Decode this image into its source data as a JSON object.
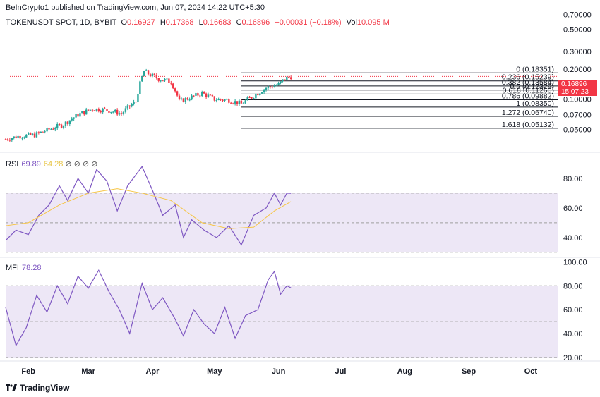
{
  "header": {
    "published": "BeInCrypto1 published on TradingView.com, Jun 07, 2024 14:22 UTC+5:30",
    "symbol": "TOKENUSDT SPOT, 1D, BYBIT",
    "open_label": "O",
    "open": "0.16927",
    "high_label": "H",
    "high": "0.17368",
    "low_label": "L",
    "low": "0.16683",
    "close_label": "C",
    "close": "0.16896",
    "change": "−0.00031 (−0.18%)",
    "vol_label": "Vol",
    "vol": "10.095 M"
  },
  "price_tag": {
    "price": "0.16896",
    "countdown": "15:07:23"
  },
  "rsi_label": {
    "name": "RSI",
    "value": "69.89",
    "ma_value": "64.28",
    "icons": "⊘ ⊘ ⊘ ⊘"
  },
  "mfi_label": {
    "name": "MFI",
    "value": "78.28"
  },
  "footer": {
    "brand": "TradingView"
  },
  "colors": {
    "up": "#26a69a",
    "down": "#f23645",
    "rsi": "#7e57c2",
    "rsi_ma": "#f6c545",
    "band": "#ede7f6"
  },
  "chart_data": [
    {
      "type": "candlestick",
      "title": "TOKENUSDT SPOT, 1D, BYBIT",
      "y_scale": "log",
      "y_ticks": [
        "0.70000",
        "0.50000",
        "0.30000",
        "0.20000",
        "0.10000",
        "0.07000",
        "0.05000"
      ],
      "y_tick_values": [
        0.7,
        0.5,
        0.3,
        0.2,
        0.1,
        0.07,
        0.05
      ],
      "ylim": [
        0.032,
        0.78
      ],
      "x_ticks": [
        "Feb",
        "Mar",
        "Apr",
        "May",
        "Jun",
        "Jul",
        "Aug",
        "Sep",
        "Oct"
      ],
      "x_tick_dates": [
        "2024-02-01",
        "2024-03-01",
        "2024-04-01",
        "2024-05-01",
        "2024-06-01",
        "2024-07-01",
        "2024-08-01",
        "2024-09-01",
        "2024-10-01"
      ],
      "x_range": [
        "2024-01-21",
        "2024-10-14"
      ],
      "close_series": [
        [
          "2024-01-21",
          0.04
        ],
        [
          "2024-01-28",
          0.043
        ],
        [
          "2024-02-04",
          0.044
        ],
        [
          "2024-02-11",
          0.05
        ],
        [
          "2024-02-18",
          0.056
        ],
        [
          "2024-02-25",
          0.07
        ],
        [
          "2024-03-03",
          0.08
        ],
        [
          "2024-03-10",
          0.078
        ],
        [
          "2024-03-17",
          0.072
        ],
        [
          "2024-03-24",
          0.095
        ],
        [
          "2024-03-28",
          0.19
        ],
        [
          "2024-03-31",
          0.175
        ],
        [
          "2024-04-04",
          0.16
        ],
        [
          "2024-04-10",
          0.15
        ],
        [
          "2024-04-14",
          0.095
        ],
        [
          "2024-04-20",
          0.105
        ],
        [
          "2024-04-25",
          0.115
        ],
        [
          "2024-05-01",
          0.1
        ],
        [
          "2024-05-08",
          0.098
        ],
        [
          "2024-05-14",
          0.09
        ],
        [
          "2024-05-20",
          0.108
        ],
        [
          "2024-05-26",
          0.13
        ],
        [
          "2024-06-01",
          0.14
        ],
        [
          "2024-06-04",
          0.16
        ],
        [
          "2024-06-07",
          0.169
        ]
      ],
      "fibonacci": [
        {
          "label": "0 (0.18351)",
          "value": 0.18351
        },
        {
          "label": "0.236 (0.15239)",
          "value": 0.15239
        },
        {
          "label": "0.382 (0.13584)",
          "value": 0.13584
        },
        {
          "label": "0.5 (0.12329)",
          "value": 0.12329
        },
        {
          "label": "0.618 (0.11260)",
          "value": 0.1126
        },
        {
          "label": "0.786 (0.09882)",
          "value": 0.09882
        },
        {
          "label": "1 (0.08350)",
          "value": 0.0835
        },
        {
          "label": "1.272 (0.06740)",
          "value": 0.0674
        },
        {
          "label": "1.618 (0.05132)",
          "value": 0.05132
        }
      ]
    },
    {
      "type": "line",
      "title": "RSI",
      "y_ticks": [
        "80.00",
        "60.00",
        "40.00"
      ],
      "y_tick_values": [
        80,
        60,
        40
      ],
      "ylim": [
        28,
        90
      ],
      "bands": [
        70,
        50,
        30
      ],
      "series": [
        {
          "points": [
            [
              "2024-01-21",
              38
            ],
            [
              "2024-01-26",
              45
            ],
            [
              "2024-02-01",
              42
            ],
            [
              "2024-02-06",
              55
            ],
            [
              "2024-02-11",
              62
            ],
            [
              "2024-02-16",
              75
            ],
            [
              "2024-02-20",
              65
            ],
            [
              "2024-02-25",
              80
            ],
            [
              "2024-03-01",
              70
            ],
            [
              "2024-03-05",
              86
            ],
            [
              "2024-03-10",
              78
            ],
            [
              "2024-03-15",
              58
            ],
            [
              "2024-03-20",
              75
            ],
            [
              "2024-03-27",
              88
            ],
            [
              "2024-04-01",
              72
            ],
            [
              "2024-04-06",
              55
            ],
            [
              "2024-04-12",
              62
            ],
            [
              "2024-04-16",
              40
            ],
            [
              "2024-04-20",
              52
            ],
            [
              "2024-04-26",
              45
            ],
            [
              "2024-05-02",
              40
            ],
            [
              "2024-05-08",
              48
            ],
            [
              "2024-05-14",
              35
            ],
            [
              "2024-05-20",
              55
            ],
            [
              "2024-05-26",
              60
            ],
            [
              "2024-05-30",
              70
            ],
            [
              "2024-06-02",
              62
            ],
            [
              "2024-06-05",
              70
            ],
            [
              "2024-06-07",
              69.89
            ]
          ]
        },
        {
          "points": [
            [
              "2024-01-21",
              48
            ],
            [
              "2024-02-01",
              50
            ],
            [
              "2024-02-16",
              62
            ],
            [
              "2024-03-01",
              70
            ],
            [
              "2024-03-15",
              73
            ],
            [
              "2024-03-27",
              70
            ],
            [
              "2024-04-10",
              65
            ],
            [
              "2024-04-25",
              50
            ],
            [
              "2024-05-08",
              46
            ],
            [
              "2024-05-20",
              47
            ],
            [
              "2024-05-30",
              58
            ],
            [
              "2024-06-07",
              64.28
            ]
          ]
        }
      ]
    },
    {
      "type": "line",
      "title": "MFI",
      "y_ticks": [
        "100.00",
        "80.00",
        "60.00",
        "40.00",
        "20.00"
      ],
      "y_tick_values": [
        100,
        80,
        60,
        40,
        20
      ],
      "ylim": [
        17,
        102
      ],
      "bands": [
        80,
        50,
        20
      ],
      "series": [
        {
          "points": [
            [
              "2024-01-21",
              62
            ],
            [
              "2024-01-26",
              30
            ],
            [
              "2024-01-31",
              45
            ],
            [
              "2024-02-05",
              72
            ],
            [
              "2024-02-10",
              58
            ],
            [
              "2024-02-15",
              80
            ],
            [
              "2024-02-20",
              65
            ],
            [
              "2024-02-25",
              88
            ],
            [
              "2024-03-01",
              78
            ],
            [
              "2024-03-06",
              93
            ],
            [
              "2024-03-11",
              75
            ],
            [
              "2024-03-16",
              60
            ],
            [
              "2024-03-21",
              40
            ],
            [
              "2024-03-27",
              82
            ],
            [
              "2024-04-01",
              60
            ],
            [
              "2024-04-06",
              70
            ],
            [
              "2024-04-12",
              52
            ],
            [
              "2024-04-16",
              38
            ],
            [
              "2024-04-21",
              60
            ],
            [
              "2024-04-26",
              48
            ],
            [
              "2024-05-01",
              40
            ],
            [
              "2024-05-06",
              62
            ],
            [
              "2024-05-11",
              36
            ],
            [
              "2024-05-16",
              55
            ],
            [
              "2024-05-22",
              60
            ],
            [
              "2024-05-27",
              85
            ],
            [
              "2024-05-30",
              92
            ],
            [
              "2024-06-02",
              73
            ],
            [
              "2024-06-05",
              80
            ],
            [
              "2024-06-07",
              78.28
            ]
          ]
        }
      ]
    }
  ]
}
